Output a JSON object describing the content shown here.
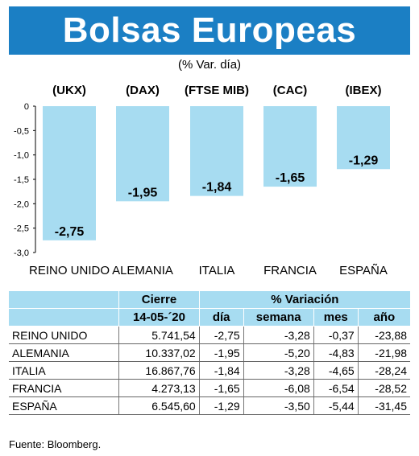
{
  "title": "Bolsas Europeas",
  "subtitle": "(% Var. día)",
  "chart_data": {
    "type": "bar",
    "categories": [
      "REINO UNIDO",
      "ALEMANIA",
      "ITALIA",
      "FRANCIA",
      "ESPAÑA"
    ],
    "index_codes": [
      "(UKX)",
      "(DAX)",
      "(FTSE MIB)",
      "(CAC)",
      "(IBEX)"
    ],
    "values": [
      -2.75,
      -1.95,
      -1.84,
      -1.65,
      -1.29
    ],
    "value_labels": [
      "-2,75",
      "-1,95",
      "-1,84",
      "-1,65",
      "-1,29"
    ],
    "ylim": [
      -3.0,
      0
    ],
    "y_ticks": [
      "0",
      "-0,5",
      "-1,0",
      "-1,5",
      "-2,0",
      "-2,5",
      "-3,0"
    ],
    "bar_color": "#a7dcf1"
  },
  "table": {
    "header_cierre": "Cierre",
    "header_variacion": "% Variación",
    "date": "14-05-´20",
    "col_dia": "día",
    "col_semana": "semana",
    "col_mes": "mes",
    "col_ano": "año",
    "rows": [
      {
        "country": "REINO UNIDO",
        "cierre": "5.741,54",
        "dia": "-2,75",
        "semana": "-3,28",
        "mes": "-0,37",
        "ano": "-23,88"
      },
      {
        "country": "ALEMANIA",
        "cierre": "10.337,02",
        "dia": "-1,95",
        "semana": "-5,20",
        "mes": "-4,83",
        "ano": "-21,98"
      },
      {
        "country": "ITALIA",
        "cierre": "16.867,76",
        "dia": "-1,84",
        "semana": "-3,28",
        "mes": "-4,65",
        "ano": "-28,24"
      },
      {
        "country": "FRANCIA",
        "cierre": "4.273,13",
        "dia": "-1,65",
        "semana": "-6,08",
        "mes": "-6,54",
        "ano": "-28,52"
      },
      {
        "country": "ESPAÑA",
        "cierre": "6.545,60",
        "dia": "-1,29",
        "semana": "-3,50",
        "mes": "-5,44",
        "ano": "-31,45"
      }
    ]
  },
  "source": "Fuente: Bloomberg."
}
